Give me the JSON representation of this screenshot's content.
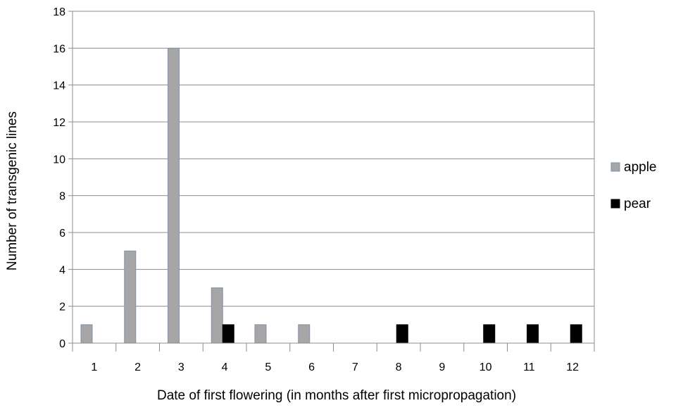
{
  "chart_data": {
    "type": "bar",
    "title": "",
    "xlabel": "Date of first flowering (in months  after first micropropagation)",
    "ylabel": "Number  of transgenic lines",
    "categories": [
      "1",
      "2",
      "3",
      "4",
      "5",
      "6",
      "7",
      "8",
      "9",
      "10",
      "11",
      "12"
    ],
    "series": [
      {
        "name": "apple",
        "color": "#a6a6a6",
        "values": [
          1,
          5,
          16,
          3,
          1,
          1,
          0,
          0,
          0,
          0,
          0,
          0
        ]
      },
      {
        "name": "pear",
        "color": "#000000",
        "values": [
          0,
          0,
          0,
          1,
          0,
          0,
          0,
          1,
          0,
          1,
          1,
          1
        ]
      }
    ],
    "ylim": [
      0,
      18
    ],
    "yticks": [
      0,
      2,
      4,
      6,
      8,
      10,
      12,
      14,
      16,
      18
    ],
    "grid": true,
    "legend": "right"
  }
}
